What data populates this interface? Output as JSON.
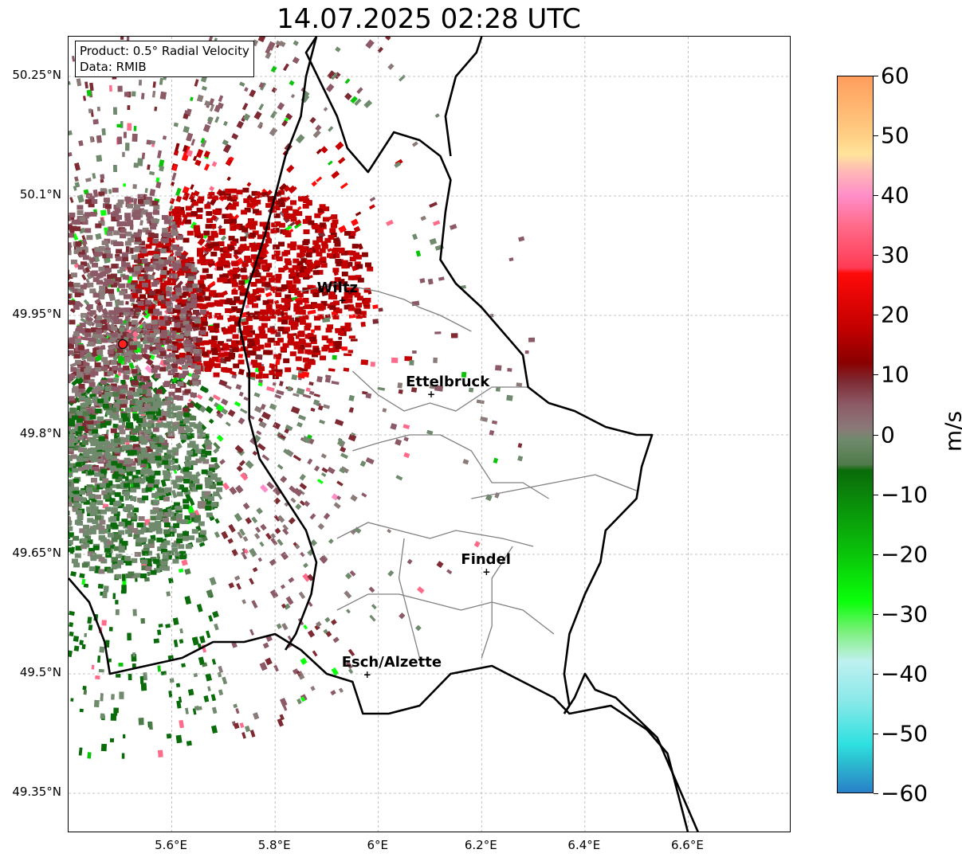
{
  "title": "14.07.2025 02:28 UTC",
  "info": {
    "product": "Product: 0.5° Radial Velocity",
    "data": "Data: RMIB"
  },
  "lat_labels": [
    {
      "label": "50.25°N",
      "lat": 50.25
    },
    {
      "label": "50.1°N",
      "lat": 50.1
    },
    {
      "label": "49.95°N",
      "lat": 49.95
    },
    {
      "label": "49.8°N",
      "lat": 49.8
    },
    {
      "label": "49.65°N",
      "lat": 49.65
    },
    {
      "label": "49.5°N",
      "lat": 49.5
    },
    {
      "label": "49.35°N",
      "lat": 49.35
    }
  ],
  "lon_labels": [
    {
      "label": "5.6°E",
      "lon": 5.6
    },
    {
      "label": "5.8°E",
      "lon": 5.8
    },
    {
      "label": "6°E",
      "lon": 6.0
    },
    {
      "label": "6.2°E",
      "lon": 6.2
    },
    {
      "label": "6.4°E",
      "lon": 6.4
    },
    {
      "label": "6.6°E",
      "lon": 6.6
    }
  ],
  "cities": [
    {
      "name": "Wiltz",
      "lat": 49.968,
      "lon": 5.932
    },
    {
      "name": "Ettelbruck",
      "lat": 49.85,
      "lon": 6.104
    },
    {
      "name": "Findel",
      "lat": 49.627,
      "lon": 6.211
    },
    {
      "name": "Esch/Alzette",
      "lat": 49.498,
      "lon": 5.98
    }
  ],
  "radar": {
    "lat": 49.914,
    "lon": 5.505,
    "color": "#ff2020"
  },
  "colorbar": {
    "unit": "m/s",
    "min": -60,
    "max": 60,
    "ticks": [
      "60",
      "50",
      "40",
      "30",
      "20",
      "10",
      "0",
      "−10",
      "−20",
      "−30",
      "−40",
      "−50",
      "−60"
    ],
    "stops": [
      {
        "v": 60,
        "c": "#ff9d5c"
      },
      {
        "v": 50,
        "c": "#ffcf85"
      },
      {
        "v": 47,
        "c": "#ffe49a"
      },
      {
        "v": 44,
        "c": "#ffb8b8"
      },
      {
        "v": 40,
        "c": "#ff8dc8"
      },
      {
        "v": 35,
        "c": "#ff6b8a"
      },
      {
        "v": 28,
        "c": "#ff3b55"
      },
      {
        "v": 27,
        "c": "#ff0a0a"
      },
      {
        "v": 18,
        "c": "#c40000"
      },
      {
        "v": 12,
        "c": "#8a0000"
      },
      {
        "v": 9,
        "c": "#7d2a32"
      },
      {
        "v": 5,
        "c": "#8c5a66"
      },
      {
        "v": 1,
        "c": "#8a7a78"
      },
      {
        "v": -1,
        "c": "#6f8a6c"
      },
      {
        "v": -5,
        "c": "#4f7a4a"
      },
      {
        "v": -6,
        "c": "#0a6b0a"
      },
      {
        "v": -20,
        "c": "#0ac40a"
      },
      {
        "v": -28,
        "c": "#0aff0a"
      },
      {
        "v": -33,
        "c": "#7bf07b"
      },
      {
        "v": -36,
        "c": "#a8f0c0"
      },
      {
        "v": -38,
        "c": "#bff0f0"
      },
      {
        "v": -45,
        "c": "#86e8e8"
      },
      {
        "v": -52,
        "c": "#2ee0e0"
      },
      {
        "v": -55,
        "c": "#2cbcd0"
      },
      {
        "v": -60,
        "c": "#2880c8"
      }
    ]
  },
  "colors": {
    "border": "#000000",
    "canton_lines": "#808080",
    "grid": "#b0b0b0"
  }
}
